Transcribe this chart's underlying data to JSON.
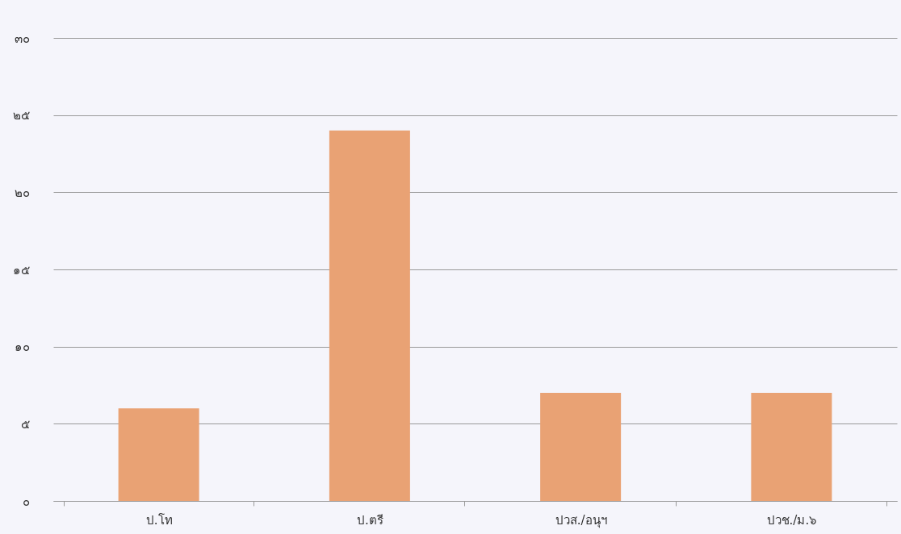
{
  "chart_data": {
    "type": "bar",
    "categories": [
      "ป.โท",
      "ป.ตรี",
      "ปวส./อนุฯ",
      "ปวช./ม.๖"
    ],
    "values": [
      6,
      24,
      7,
      7
    ],
    "color": "#e9a274",
    "ylim": [
      0,
      30
    ],
    "yticks": [
      {
        "value": 0,
        "label": "๐"
      },
      {
        "value": 5,
        "label": "๕"
      },
      {
        "value": 10,
        "label": "๑๐"
      },
      {
        "value": 15,
        "label": "๑๕"
      },
      {
        "value": 20,
        "label": "๒๐"
      },
      {
        "value": 25,
        "label": "๒๕"
      },
      {
        "value": 30,
        "label": "๓๐"
      }
    ],
    "grid": "y"
  }
}
